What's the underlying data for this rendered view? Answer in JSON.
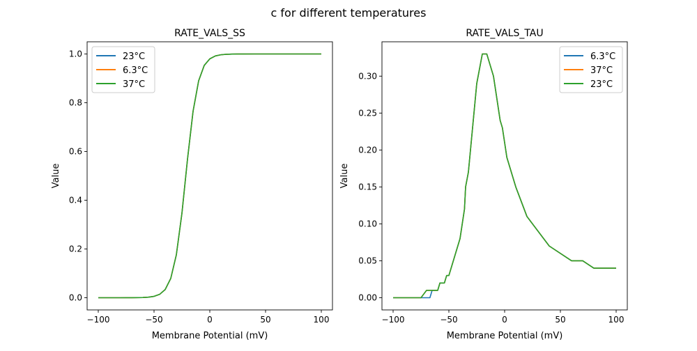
{
  "figure_title": "c for different temperatures",
  "colors": {
    "blue": "#1f77b4",
    "orange": "#ff7f0e",
    "green": "#2ca02c"
  },
  "chart_data": [
    {
      "type": "line",
      "title": "RATE_VALS_SS",
      "xlabel": "Membrane Potential (mV)",
      "ylabel": "Value",
      "xlim": [
        -110,
        110
      ],
      "ylim": [
        -0.05,
        1.05
      ],
      "xticks": [
        -100,
        -50,
        0,
        50,
        100
      ],
      "xtick_labels": [
        "−100",
        "−50",
        "0",
        "50",
        "100"
      ],
      "yticks": [
        0,
        0.2,
        0.4,
        0.6,
        0.8,
        1.0
      ],
      "ytick_labels": [
        "0.0",
        "0.2",
        "0.4",
        "0.6",
        "0.8",
        "1.0"
      ],
      "legend_position": "top-left",
      "grid": false,
      "series": [
        {
          "name": "23°C",
          "color": "#1f77b4",
          "x": [
            -100,
            -95,
            -90,
            -85,
            -80,
            -75,
            -70,
            -65,
            -60,
            -55,
            -50,
            -45,
            -40,
            -35,
            -30,
            -25,
            -20,
            -15,
            -10,
            -5,
            0,
            5,
            10,
            15,
            20,
            25,
            30,
            40,
            50,
            60,
            70,
            80,
            90,
            100
          ],
          "y": [
            0,
            0,
            0,
            0,
            0,
            0.0001,
            0.00015,
            0.0004,
            0.0009,
            0.0023,
            0.0056,
            0.0138,
            0.0335,
            0.0793,
            0.176,
            0.346,
            0.568,
            0.765,
            0.89,
            0.953,
            0.98,
            0.992,
            0.9968,
            0.9987,
            0.9995,
            0.9998,
            0.9999,
            1,
            1,
            1,
            1,
            1,
            1,
            1
          ]
        },
        {
          "name": "6.3°C",
          "color": "#ff7f0e",
          "x": [
            -100,
            -95,
            -90,
            -85,
            -80,
            -75,
            -70,
            -65,
            -60,
            -55,
            -50,
            -45,
            -40,
            -35,
            -30,
            -25,
            -20,
            -15,
            -10,
            -5,
            0,
            5,
            10,
            15,
            20,
            25,
            30,
            40,
            50,
            60,
            70,
            80,
            90,
            100
          ],
          "y": [
            0,
            0,
            0,
            0,
            0,
            0.0001,
            0.00015,
            0.0004,
            0.0009,
            0.0023,
            0.0056,
            0.0138,
            0.0335,
            0.0793,
            0.176,
            0.346,
            0.568,
            0.765,
            0.89,
            0.953,
            0.98,
            0.992,
            0.9968,
            0.9987,
            0.9995,
            0.9998,
            0.9999,
            1,
            1,
            1,
            1,
            1,
            1,
            1
          ]
        },
        {
          "name": "37°C",
          "color": "#2ca02c",
          "x": [
            -100,
            -95,
            -90,
            -85,
            -80,
            -75,
            -70,
            -65,
            -60,
            -55,
            -50,
            -45,
            -40,
            -35,
            -30,
            -25,
            -20,
            -15,
            -10,
            -5,
            0,
            5,
            10,
            15,
            20,
            25,
            30,
            40,
            50,
            60,
            70,
            80,
            90,
            100
          ],
          "y": [
            0,
            0,
            0,
            0,
            0,
            0.0001,
            0.00015,
            0.0004,
            0.0009,
            0.0023,
            0.0056,
            0.0138,
            0.0335,
            0.0793,
            0.176,
            0.346,
            0.568,
            0.765,
            0.89,
            0.953,
            0.98,
            0.992,
            0.9968,
            0.9987,
            0.9995,
            0.9998,
            0.9999,
            1,
            1,
            1,
            1,
            1,
            1,
            1
          ]
        }
      ]
    },
    {
      "type": "line",
      "title": "RATE_VALS_TAU",
      "xlabel": "Membrane Potential (mV)",
      "ylabel": "Value",
      "xlim": [
        -110,
        110
      ],
      "ylim": [
        -0.0165,
        0.3465
      ],
      "xticks": [
        -100,
        -50,
        0,
        50,
        100
      ],
      "xtick_labels": [
        "−100",
        "−50",
        "0",
        "50",
        "100"
      ],
      "yticks": [
        0,
        0.05,
        0.1,
        0.15,
        0.2,
        0.25,
        0.3
      ],
      "ytick_labels": [
        "0.00",
        "0.05",
        "0.10",
        "0.15",
        "0.20",
        "0.25",
        "0.30"
      ],
      "legend_position": "top-right",
      "grid": false,
      "series": [
        {
          "name": "6.3°C",
          "color": "#1f77b4",
          "x": [
            -100,
            -75,
            -67,
            -65,
            -60,
            -58,
            -54,
            -52,
            -50,
            -40,
            -36,
            -35,
            -32.5,
            -30,
            -25,
            -20,
            -16,
            -10,
            -4,
            -2,
            2,
            10,
            20,
            40,
            60,
            70,
            80,
            100
          ],
          "y": [
            0,
            0,
            0,
            0.01,
            0.01,
            0.02,
            0.02,
            0.03,
            0.03,
            0.08,
            0.12,
            0.15,
            0.17,
            0.21,
            0.29,
            0.33,
            0.33,
            0.3,
            0.24,
            0.23,
            0.19,
            0.15,
            0.11,
            0.07,
            0.05,
            0.05,
            0.04,
            0.04
          ]
        },
        {
          "name": "37°C",
          "color": "#ff7f0e",
          "x": [
            -100,
            -75,
            -70,
            -60,
            -58,
            -54,
            -52,
            -50,
            -40,
            -36,
            -35,
            -32.5,
            -30,
            -25,
            -20,
            -16,
            -10,
            -4,
            -2,
            2,
            10,
            20,
            40,
            60,
            70,
            80,
            100
          ],
          "y": [
            0,
            0,
            0.01,
            0.01,
            0.02,
            0.02,
            0.03,
            0.03,
            0.08,
            0.12,
            0.15,
            0.17,
            0.21,
            0.29,
            0.33,
            0.33,
            0.3,
            0.24,
            0.23,
            0.19,
            0.15,
            0.11,
            0.07,
            0.05,
            0.05,
            0.04,
            0.04
          ]
        },
        {
          "name": "23°C",
          "color": "#2ca02c",
          "x": [
            -100,
            -75,
            -70,
            -60,
            -58,
            -54,
            -52,
            -50,
            -40,
            -36,
            -35,
            -32.5,
            -30,
            -25,
            -20,
            -16,
            -10,
            -4,
            -2,
            2,
            10,
            20,
            40,
            60,
            70,
            80,
            100
          ],
          "y": [
            0,
            0,
            0.01,
            0.01,
            0.02,
            0.02,
            0.03,
            0.03,
            0.08,
            0.12,
            0.15,
            0.17,
            0.21,
            0.29,
            0.33,
            0.33,
            0.3,
            0.24,
            0.23,
            0.19,
            0.15,
            0.11,
            0.07,
            0.05,
            0.05,
            0.04,
            0.04
          ]
        }
      ]
    }
  ]
}
